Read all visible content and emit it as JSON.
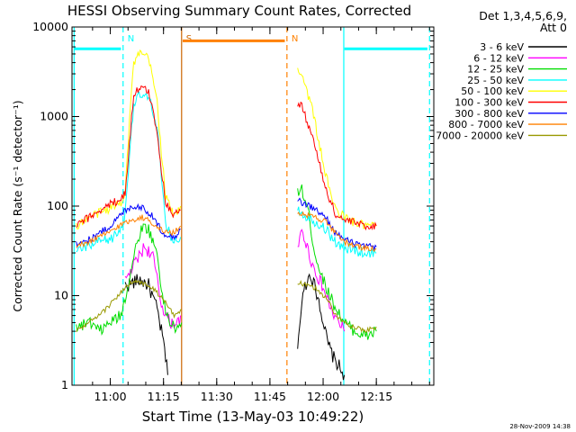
{
  "chart_data": {
    "type": "line",
    "title": "HESSI Observing Summary Count Rates, Corrected",
    "xlabel": "Start Time (13-May-03 10:49:22)",
    "ylabel": "Corrected Count Rate (s⁻¹ detector⁻¹)",
    "yscale": "log",
    "ylim": [
      1,
      10000
    ],
    "xlim_minutes": [
      10.82,
      12.52
    ],
    "x_tick_labels": [
      "11:00",
      "11:15",
      "11:30",
      "11:45",
      "12:00",
      "12:15"
    ],
    "y_tick_labels": [
      "1",
      "10",
      "100",
      "1000",
      "10000"
    ],
    "legend_header": [
      "Det 1,3,4,5,6,9,",
      "Att 0"
    ],
    "legend_position": "right",
    "timestamp": "28-Nov-2009 14:38",
    "series": [
      {
        "name": "3 - 6 keV",
        "color": "#000000",
        "points": [
          [
            11.07,
            13
          ],
          [
            11.14,
            15
          ],
          [
            11.18,
            13
          ],
          [
            11.22,
            7
          ],
          [
            11.25,
            3
          ],
          [
            11.27,
            1.3
          ],
          [
            11.88,
            3
          ],
          [
            11.91,
            12
          ],
          [
            11.94,
            18
          ],
          [
            11.98,
            9
          ],
          [
            12.02,
            3
          ],
          [
            12.05,
            2
          ],
          [
            12.1,
            1.3
          ]
        ]
      },
      {
        "name": "6 - 12 keV",
        "color": "#ff00ff",
        "points": [
          [
            11.07,
            14
          ],
          [
            11.1,
            20
          ],
          [
            11.13,
            26
          ],
          [
            11.16,
            35
          ],
          [
            11.2,
            28
          ],
          [
            11.24,
            8
          ],
          [
            11.28,
            5
          ],
          [
            11.32,
            5
          ],
          [
            11.33,
            6
          ],
          [
            11.88,
            30
          ],
          [
            11.9,
            55
          ],
          [
            11.95,
            22
          ],
          [
            12.0,
            12
          ],
          [
            12.05,
            6
          ],
          [
            12.1,
            4
          ]
        ]
      },
      {
        "name": "12 - 25 keV",
        "color": "#00dd00",
        "points": [
          [
            10.84,
            4.5
          ],
          [
            10.9,
            5
          ],
          [
            10.95,
            4
          ],
          [
            11.0,
            5
          ],
          [
            11.05,
            6
          ],
          [
            11.08,
            12
          ],
          [
            11.12,
            35
          ],
          [
            11.15,
            60
          ],
          [
            11.18,
            55
          ],
          [
            11.22,
            30
          ],
          [
            11.25,
            8
          ],
          [
            11.28,
            5
          ],
          [
            11.32,
            4
          ],
          [
            11.335,
            5
          ],
          [
            11.88,
            150
          ],
          [
            11.9,
            150
          ],
          [
            11.93,
            90
          ],
          [
            11.96,
            30
          ],
          [
            12.0,
            15
          ],
          [
            12.05,
            8
          ],
          [
            12.1,
            5
          ],
          [
            12.15,
            4
          ],
          [
            12.2,
            3.5
          ],
          [
            12.25,
            4
          ]
        ]
      },
      {
        "name": "25 - 50 keV",
        "color": "#00ffff",
        "points": [
          [
            10.84,
            33
          ],
          [
            10.9,
            35
          ],
          [
            10.95,
            40
          ],
          [
            11.0,
            42
          ],
          [
            11.05,
            55
          ],
          [
            11.07,
            80
          ],
          [
            11.09,
            400
          ],
          [
            11.11,
            1400
          ],
          [
            11.14,
            1700
          ],
          [
            11.18,
            1600
          ],
          [
            11.22,
            800
          ],
          [
            11.24,
            200
          ],
          [
            11.26,
            60
          ],
          [
            11.3,
            40
          ],
          [
            11.33,
            45
          ],
          [
            11.88,
            95
          ],
          [
            11.91,
            80
          ],
          [
            11.95,
            70
          ],
          [
            12.0,
            60
          ],
          [
            12.04,
            45
          ],
          [
            12.08,
            35
          ],
          [
            12.15,
            32
          ],
          [
            12.2,
            30
          ],
          [
            12.25,
            30
          ]
        ]
      },
      {
        "name": "50 - 100 keV",
        "color": "#ffff00",
        "points": [
          [
            10.84,
            60
          ],
          [
            10.9,
            75
          ],
          [
            10.95,
            85
          ],
          [
            11.0,
            95
          ],
          [
            11.05,
            110
          ],
          [
            11.07,
            150
          ],
          [
            11.09,
            900
          ],
          [
            11.11,
            4000
          ],
          [
            11.14,
            5000
          ],
          [
            11.18,
            4500
          ],
          [
            11.22,
            1500
          ],
          [
            11.24,
            400
          ],
          [
            11.26,
            130
          ],
          [
            11.3,
            75
          ],
          [
            11.33,
            100
          ],
          [
            11.88,
            3500
          ],
          [
            11.9,
            3000
          ],
          [
            11.95,
            1200
          ],
          [
            12.0,
            300
          ],
          [
            12.03,
            150
          ],
          [
            12.06,
            90
          ],
          [
            12.1,
            75
          ],
          [
            12.15,
            65
          ],
          [
            12.2,
            60
          ],
          [
            12.25,
            60
          ]
        ]
      },
      {
        "name": "100 - 300 keV",
        "color": "#ff0000",
        "points": [
          [
            10.84,
            60
          ],
          [
            10.9,
            75
          ],
          [
            10.95,
            90
          ],
          [
            11.0,
            105
          ],
          [
            11.05,
            120
          ],
          [
            11.07,
            140
          ],
          [
            11.09,
            500
          ],
          [
            11.11,
            1800
          ],
          [
            11.14,
            2100
          ],
          [
            11.18,
            1900
          ],
          [
            11.22,
            700
          ],
          [
            11.24,
            250
          ],
          [
            11.26,
            110
          ],
          [
            11.3,
            80
          ],
          [
            11.33,
            90
          ],
          [
            11.88,
            1400
          ],
          [
            11.9,
            1300
          ],
          [
            11.95,
            600
          ],
          [
            12.0,
            200
          ],
          [
            12.03,
            120
          ],
          [
            12.06,
            80
          ],
          [
            12.1,
            70
          ],
          [
            12.15,
            65
          ],
          [
            12.2,
            60
          ],
          [
            12.25,
            60
          ]
        ]
      },
      {
        "name": "300 - 800 keV",
        "color": "#0000ff",
        "points": [
          [
            10.84,
            38
          ],
          [
            10.9,
            42
          ],
          [
            10.95,
            50
          ],
          [
            11.0,
            60
          ],
          [
            11.05,
            80
          ],
          [
            11.08,
            95
          ],
          [
            11.12,
            100
          ],
          [
            11.16,
            95
          ],
          [
            11.2,
            75
          ],
          [
            11.25,
            50
          ],
          [
            11.3,
            45
          ],
          [
            11.33,
            55
          ],
          [
            11.88,
            115
          ],
          [
            11.92,
            105
          ],
          [
            11.97,
            90
          ],
          [
            12.02,
            70
          ],
          [
            12.06,
            50
          ],
          [
            12.1,
            42
          ],
          [
            12.15,
            38
          ],
          [
            12.2,
            35
          ],
          [
            12.25,
            35
          ]
        ]
      },
      {
        "name": "800 - 7000 keV",
        "color": "#ff8000",
        "points": [
          [
            10.84,
            35
          ],
          [
            10.9,
            40
          ],
          [
            10.95,
            45
          ],
          [
            11.0,
            52
          ],
          [
            11.05,
            62
          ],
          [
            11.1,
            70
          ],
          [
            11.15,
            75
          ],
          [
            11.2,
            65
          ],
          [
            11.25,
            52
          ],
          [
            11.3,
            50
          ],
          [
            11.33,
            60
          ],
          [
            11.88,
            85
          ],
          [
            11.92,
            80
          ],
          [
            11.97,
            75
          ],
          [
            12.02,
            65
          ],
          [
            12.06,
            48
          ],
          [
            12.1,
            40
          ],
          [
            12.15,
            36
          ],
          [
            12.2,
            34
          ],
          [
            12.25,
            33
          ]
        ]
      },
      {
        "name": "7000 - 20000 keV",
        "color": "#999900",
        "points": [
          [
            10.84,
            4
          ],
          [
            10.9,
            5
          ],
          [
            10.95,
            6
          ],
          [
            11.0,
            8
          ],
          [
            11.05,
            11
          ],
          [
            11.1,
            14
          ],
          [
            11.15,
            14
          ],
          [
            11.2,
            12
          ],
          [
            11.25,
            9
          ],
          [
            11.3,
            6
          ],
          [
            11.335,
            7
          ],
          [
            11.88,
            14
          ],
          [
            11.92,
            13
          ],
          [
            11.97,
            12
          ],
          [
            12.02,
            9
          ],
          [
            12.06,
            6
          ],
          [
            12.1,
            5
          ],
          [
            12.15,
            4.5
          ],
          [
            12.2,
            4
          ],
          [
            12.25,
            4.5
          ]
        ]
      }
    ],
    "markers": [
      {
        "label": "N",
        "color": "#00ffff",
        "style": "dashed",
        "x": 11.06
      },
      {
        "label": "S",
        "color": "#cc6600",
        "style": "solid",
        "x": 11.335
      },
      {
        "label": "N",
        "color": "#ff8000",
        "style": "dashed",
        "x": 11.83
      },
      {
        "label": "",
        "color": "#00ffff",
        "style": "solid",
        "x": 12.097
      },
      {
        "label": "",
        "color": "#00ffff",
        "style": "dashed",
        "x": 12.5
      },
      {
        "label": "",
        "color": "#00ffff",
        "style": "solid",
        "x": 10.83
      }
    ],
    "flag_bars": [
      {
        "color": "#00ffff",
        "x": [
          10.83,
          11.05
        ],
        "y": 5700
      },
      {
        "color": "#ff8000",
        "x": [
          11.34,
          11.82
        ],
        "y": 7000
      },
      {
        "color": "#00ffff",
        "x": [
          12.1,
          12.49
        ],
        "y": 5700
      }
    ]
  }
}
